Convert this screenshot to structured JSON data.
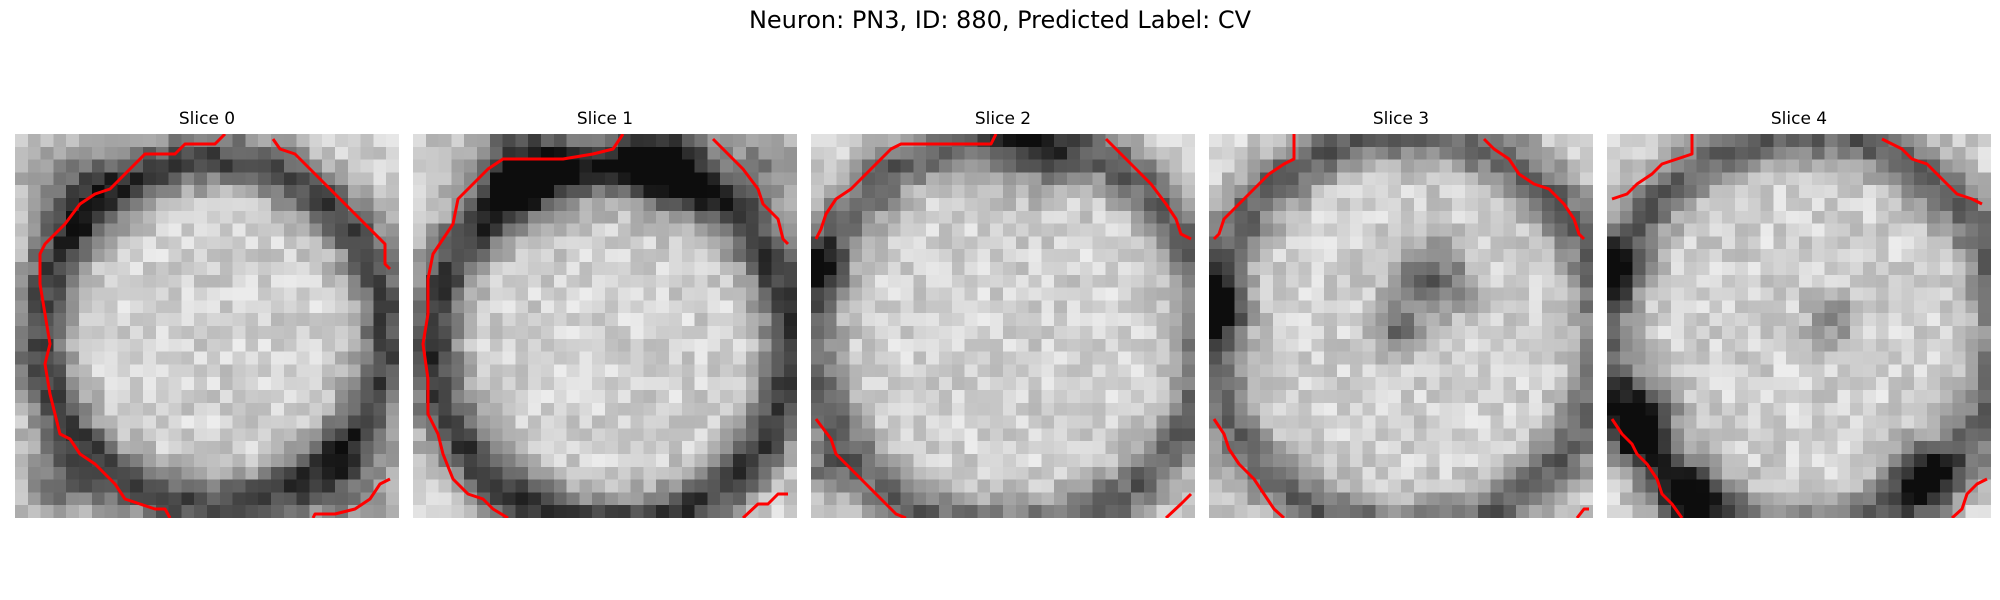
{
  "figure": {
    "title": "Neuron: PN3, ID: 880, Predicted Label: CV"
  },
  "colors": {
    "contour": "#ff0000",
    "colormap": "gray"
  },
  "panels": [
    {
      "title": "Slice 0"
    },
    {
      "title": "Slice 1"
    },
    {
      "title": "Slice 2"
    },
    {
      "title": "Slice 3"
    },
    {
      "title": "Slice 4"
    }
  ]
}
